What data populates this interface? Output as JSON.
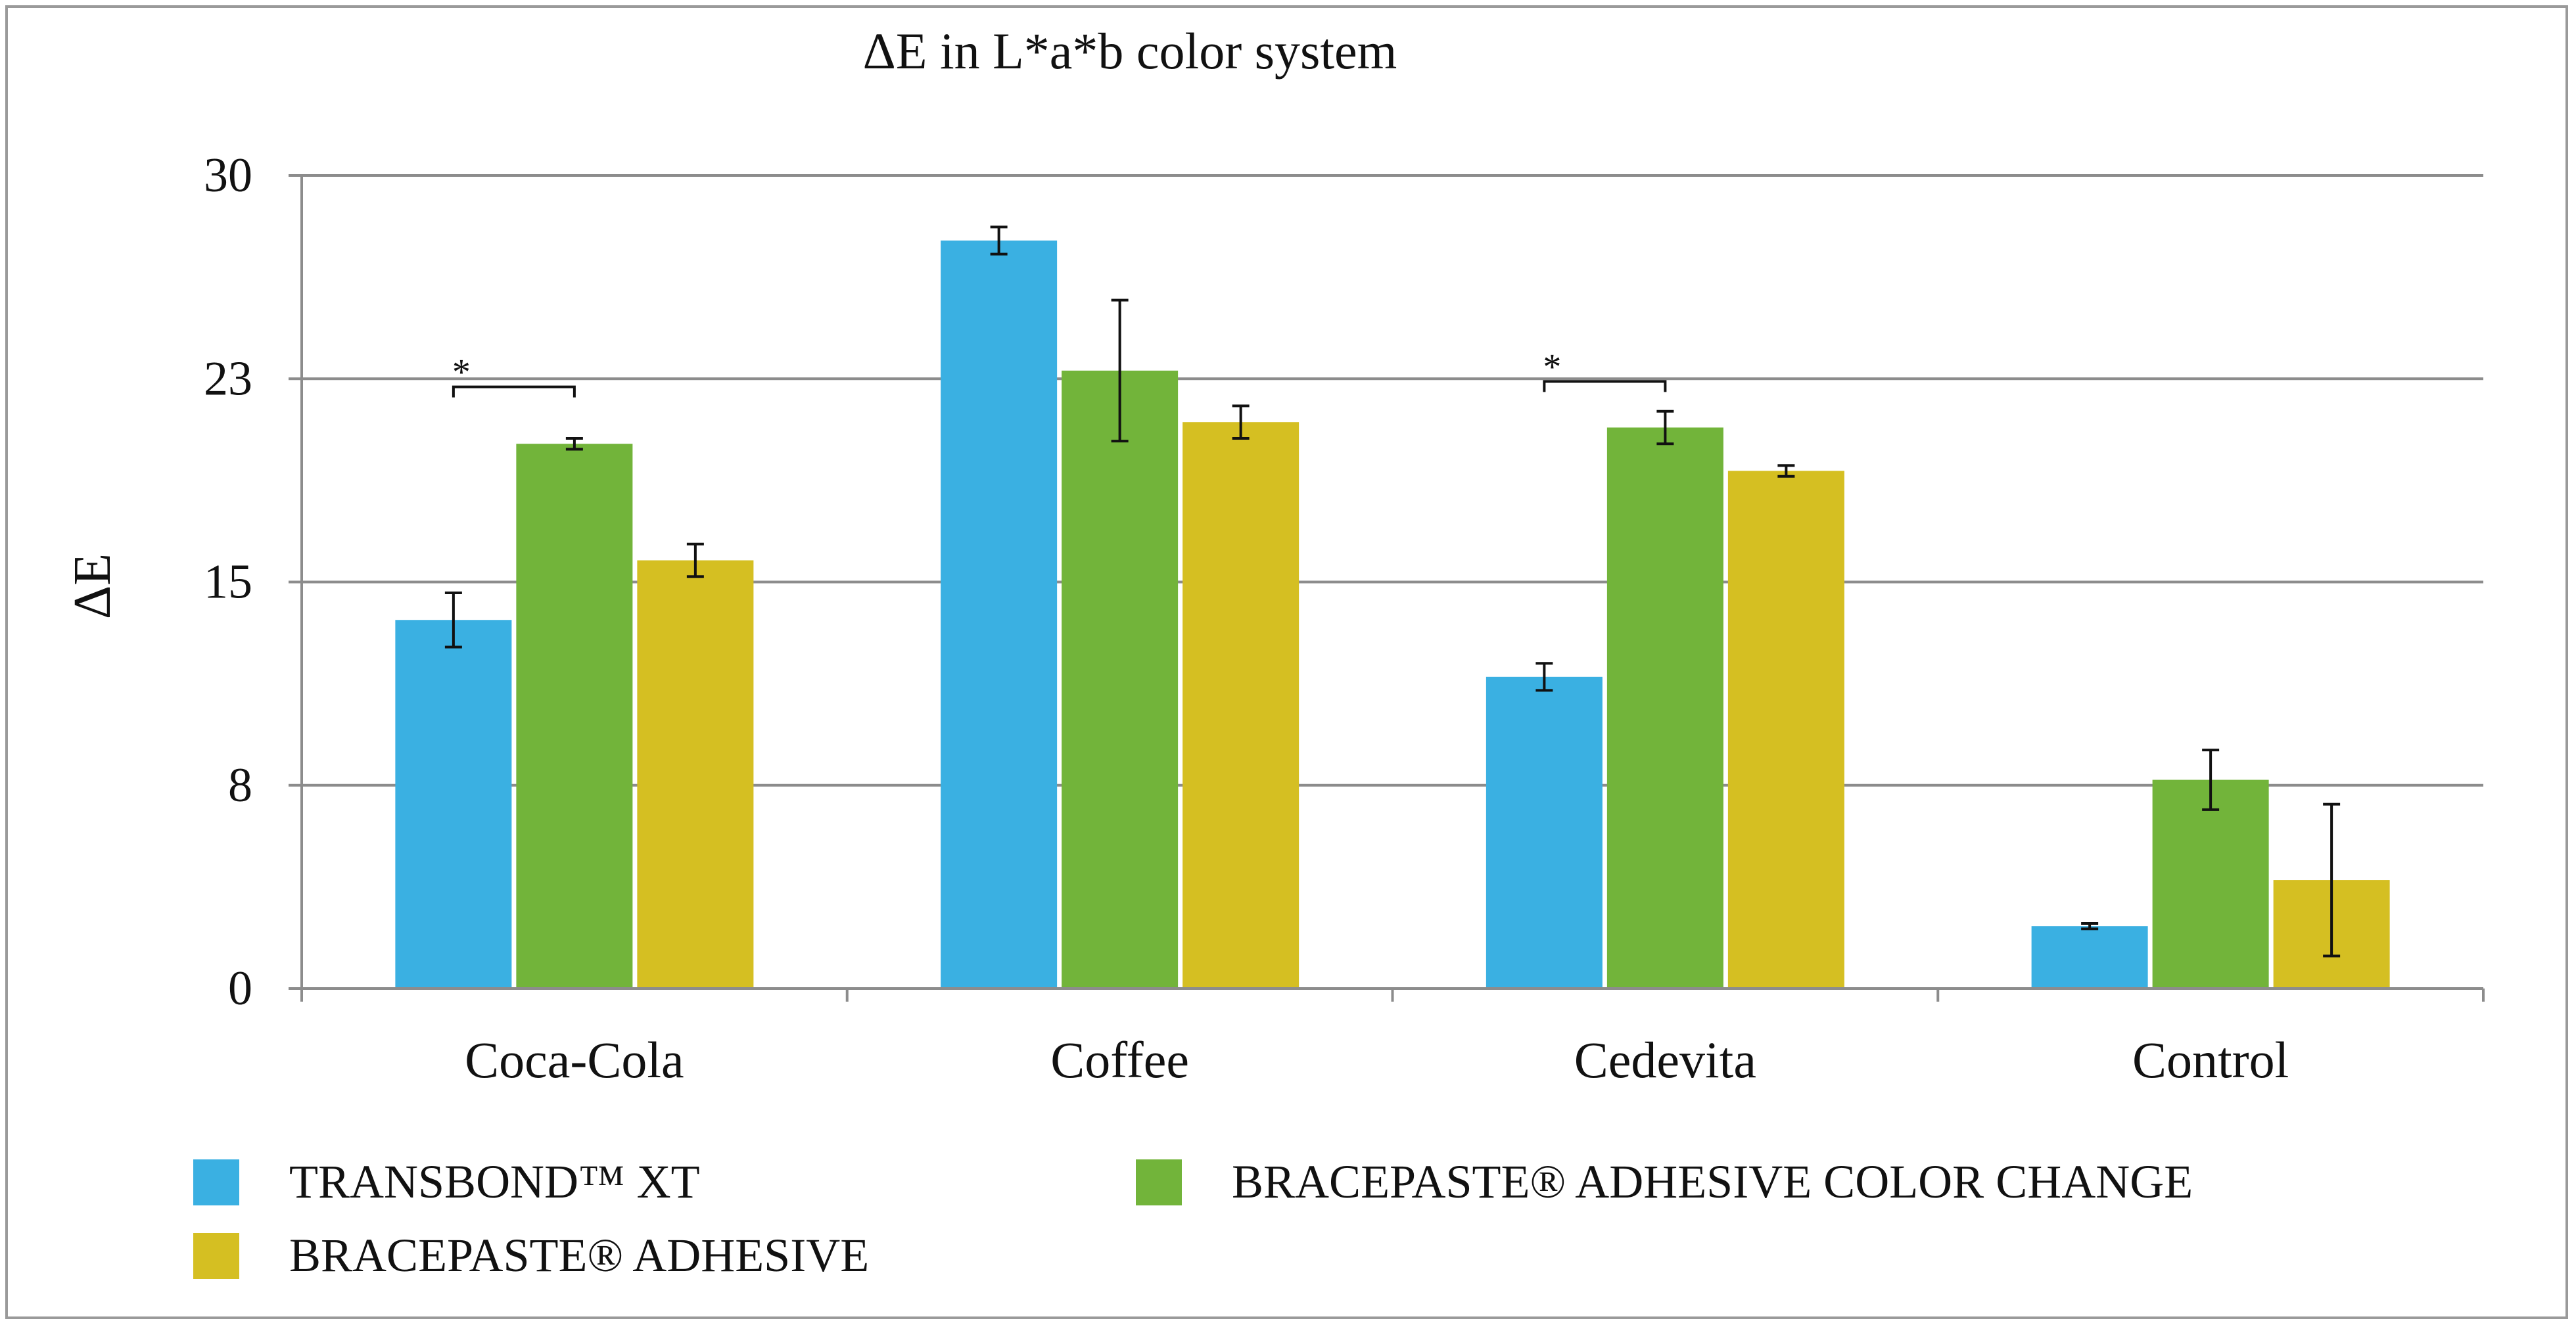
{
  "chart_data": {
    "type": "bar",
    "title": "ΔE in L*a*b color system",
    "xlabel": "",
    "ylabel": "ΔE",
    "ylim": [
      0,
      30
    ],
    "yticks": [
      0,
      8,
      15,
      23,
      30
    ],
    "ytick_values": [
      0,
      7.5,
      15,
      22.5,
      30
    ],
    "grid": true,
    "legend_position": "bottom",
    "categories": [
      "Coca-Cola",
      "Coffee",
      "Cedevita",
      "Control"
    ],
    "series": [
      {
        "name": "TRANSBOND™ XT",
        "color": "#3ab0e2",
        "values": [
          13.6,
          27.6,
          11.5,
          2.3
        ],
        "errors": [
          1.0,
          0.5,
          0.5,
          0.1
        ]
      },
      {
        "name": "BRACEPASTE® ADHESIVE COLOR CHANGE",
        "color": "#72b43a",
        "values": [
          20.1,
          22.8,
          20.7,
          7.7
        ],
        "errors": [
          0.2,
          2.6,
          0.6,
          1.1
        ]
      },
      {
        "name": "BRACEPASTE® ADHESIVE",
        "color": "#d5bf22",
        "values": [
          15.8,
          20.9,
          19.1,
          4.0
        ],
        "errors": [
          0.6,
          0.6,
          0.2,
          2.8
        ]
      }
    ],
    "annotations": [
      {
        "text": "*",
        "category": "Coca-Cola",
        "from_series": 0,
        "to_series": 1,
        "level": 22.2
      },
      {
        "text": "*",
        "category": "Cedevita",
        "from_series": 0,
        "to_series": 1,
        "level": 22.4
      }
    ]
  }
}
